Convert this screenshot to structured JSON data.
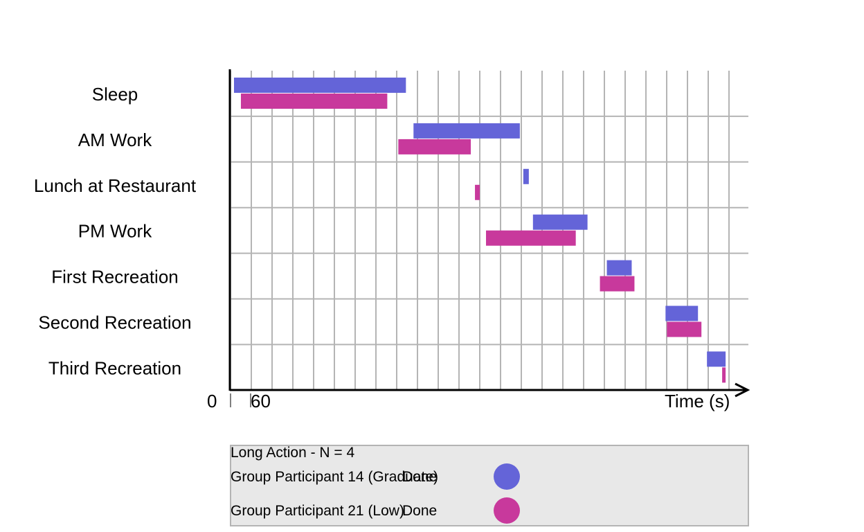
{
  "chart_data": {
    "type": "gantt",
    "xlabel": "Time (s)",
    "x_origin_label": "0",
    "x_ticks": [
      60
    ],
    "x_tick_labels": [
      "60"
    ],
    "xlim": [
      0,
      1500
    ],
    "grid": true,
    "categories": [
      "Sleep",
      "AM Work",
      "Lunch at Restaurant",
      "PM Work",
      "First Recreation",
      "Second Recreation",
      "Third Recreation"
    ],
    "series": [
      {
        "name": "Group Participant 14 (Graduate)",
        "status": "Done",
        "color": "#6464d8",
        "intervals": [
          [
            10,
            508
          ],
          [
            530,
            838
          ],
          [
            848,
            864
          ],
          [
            876,
            1034
          ],
          [
            1090,
            1162
          ],
          [
            1260,
            1354
          ],
          [
            1380,
            1434
          ]
        ]
      },
      {
        "name": "Group Participant 21 (Low)",
        "status": "Done",
        "color": "#c8399c",
        "intervals": [
          [
            30,
            454
          ],
          [
            486,
            696
          ],
          [
            708,
            722
          ],
          [
            740,
            1000
          ],
          [
            1070,
            1170
          ],
          [
            1264,
            1364
          ],
          [
            1424,
            1434
          ]
        ]
      }
    ],
    "legend": {
      "title": "Long Action  -  N =  4",
      "position": "bottom",
      "background": "#e8e8e8"
    }
  }
}
